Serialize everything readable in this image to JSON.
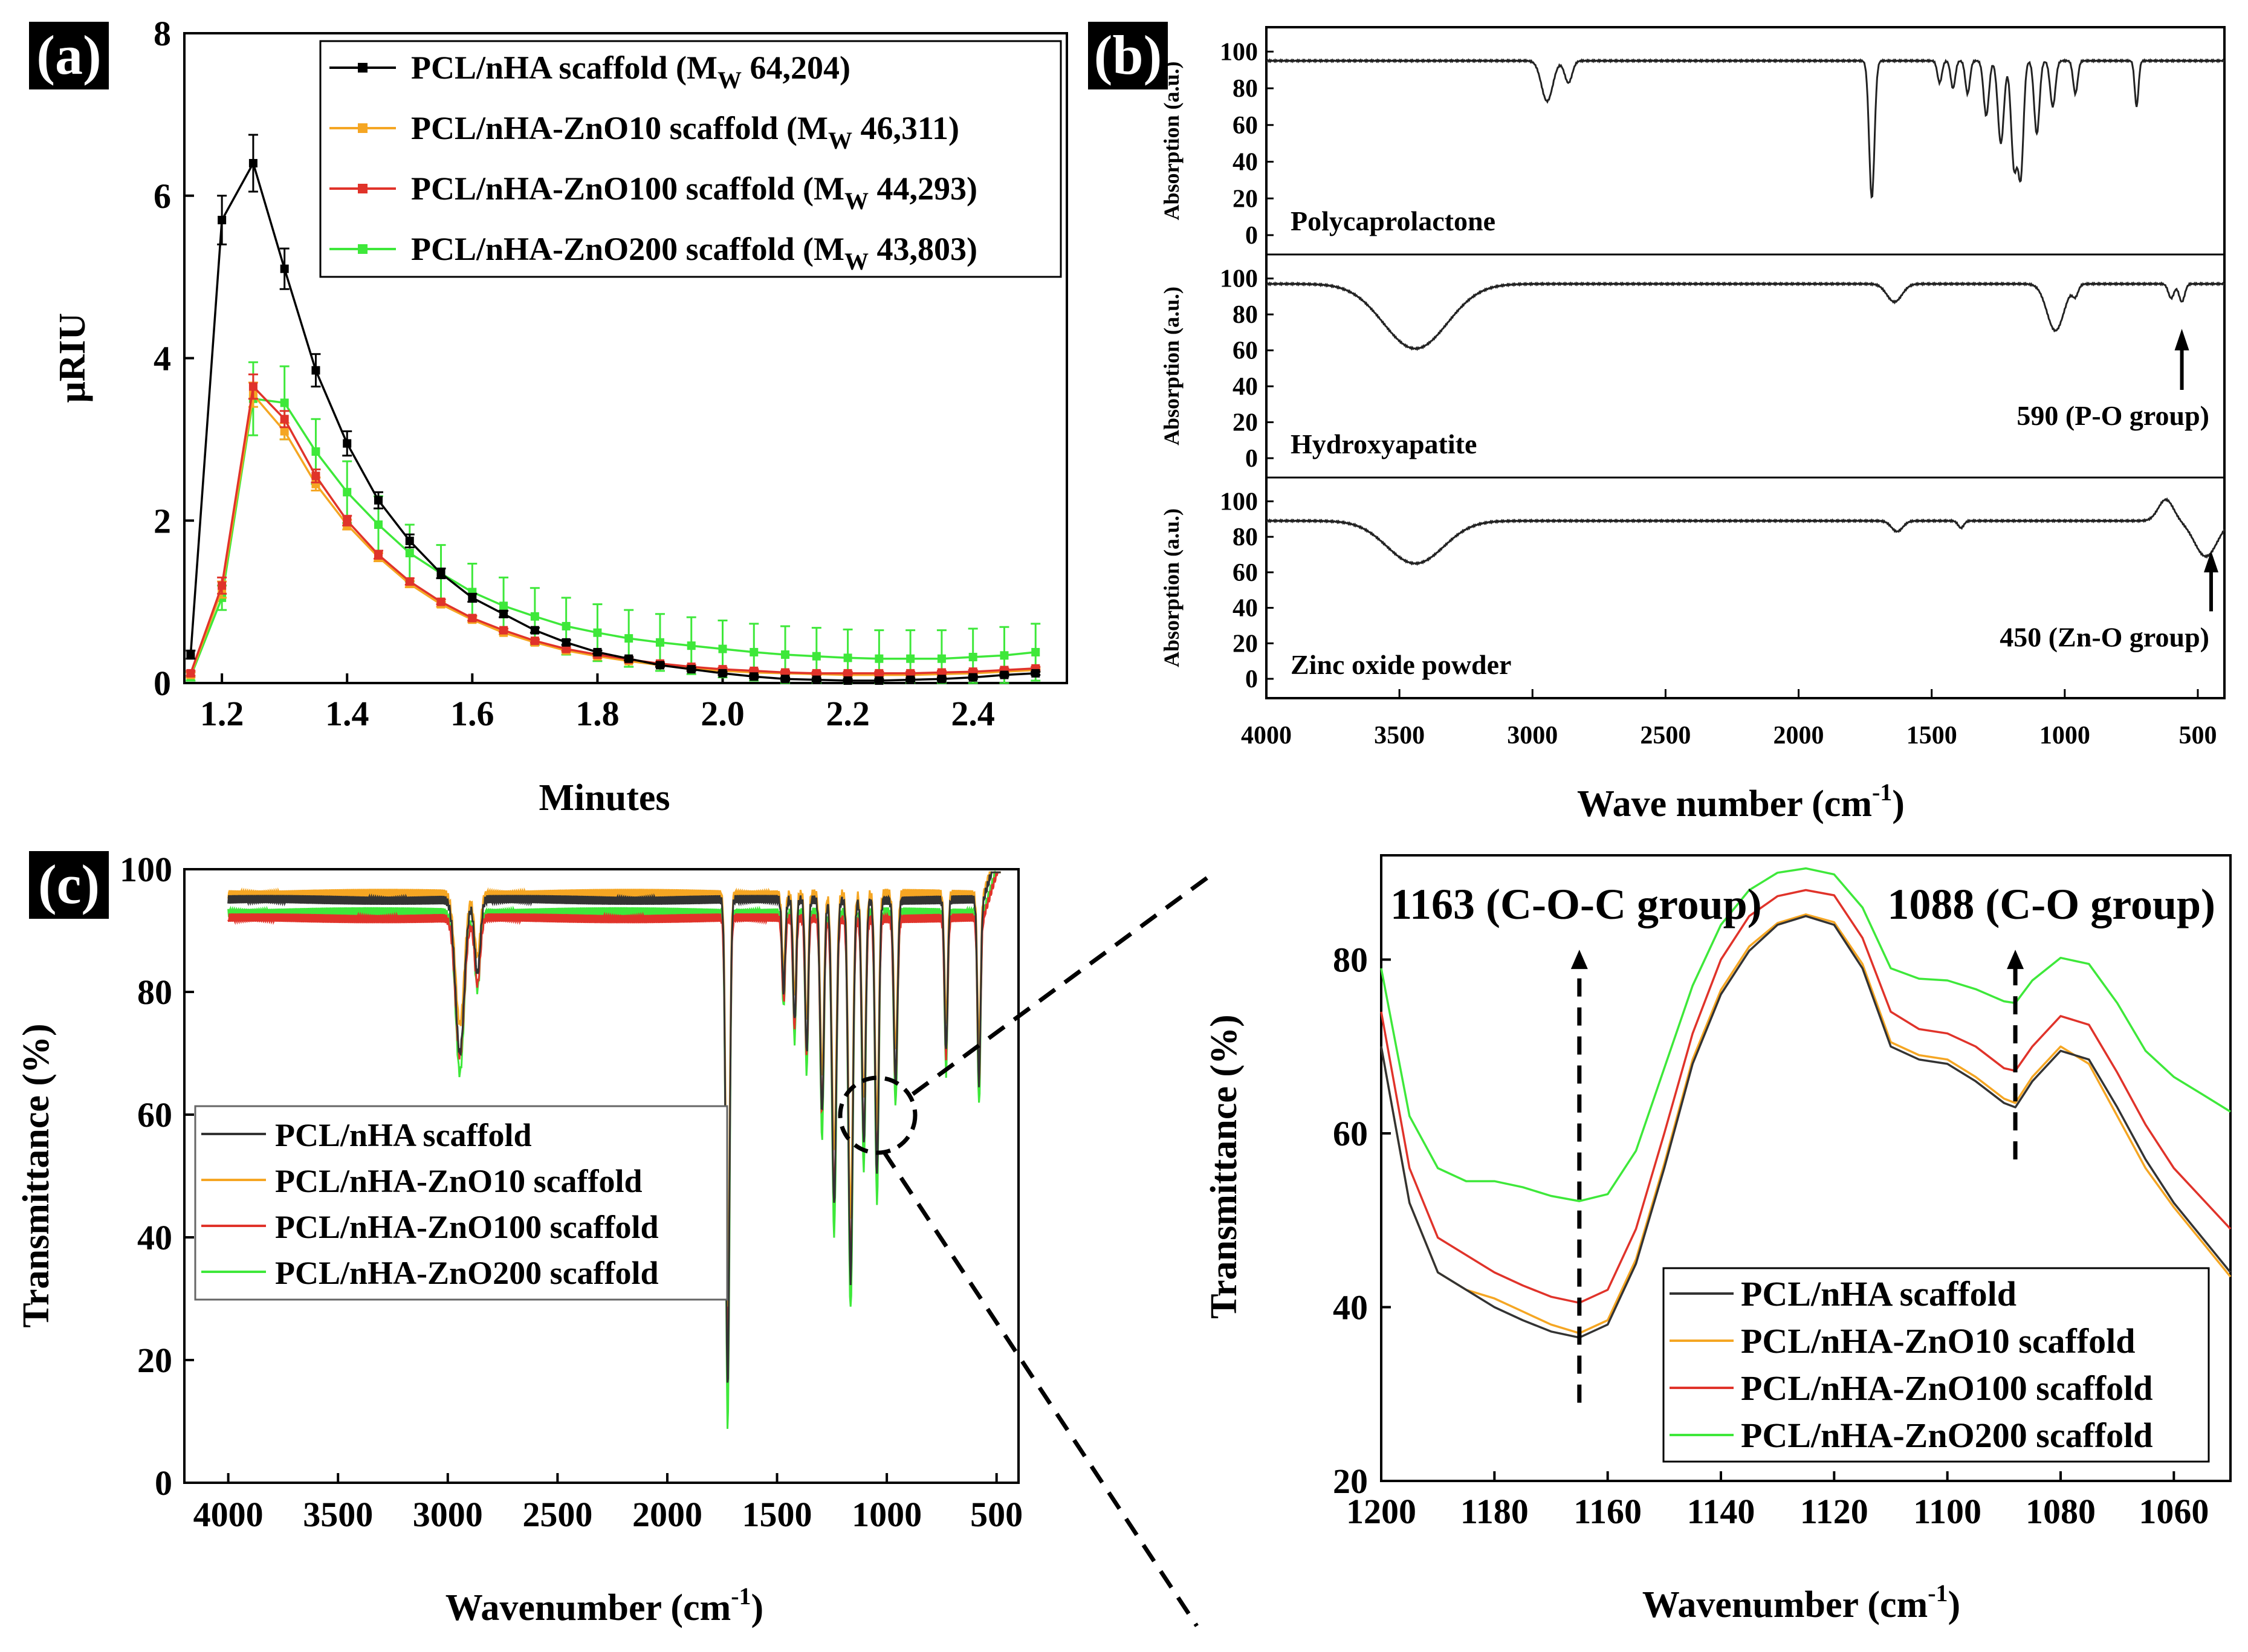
{
  "colors": {
    "black": "#000000",
    "orange": "#f5a623",
    "red": "#e0332a",
    "green": "#3ee83a",
    "pcl": "#333333",
    "panel_tag_bg": "#000000",
    "panel_tag_fg": "#ffffff"
  },
  "chart_data": [
    {
      "id": "a",
      "type": "line",
      "panel_label": "(a)",
      "xlabel": "Minutes",
      "ylabel": "μRIU",
      "xlim": [
        1.14,
        2.55
      ],
      "ylim": [
        0,
        8
      ],
      "xticks": [
        "1.2",
        "1.4",
        "1.6",
        "1.8",
        "2.0",
        "2.2",
        "2.4"
      ],
      "yticks": [
        "0",
        "2",
        "4",
        "6",
        "8"
      ],
      "legend": {
        "position": "top-right",
        "entries": [
          {
            "name": "PCL/nHA scaffold (M",
            "sub": "W",
            "tail": " 64,204)",
            "color_key": "black"
          },
          {
            "name": "PCL/nHA-ZnO10 scaffold (M",
            "sub": "W",
            "tail": " 46,311)",
            "color_key": "orange"
          },
          {
            "name": "PCL/nHA-ZnO100 scaffold (M",
            "sub": "W",
            "tail": " 44,293)",
            "color_key": "red"
          },
          {
            "name": "PCL/nHA-ZnO200 scaffold (M",
            "sub": "W",
            "tail": " 43,803)",
            "color_key": "green"
          }
        ]
      },
      "x": [
        1.15,
        1.2,
        1.25,
        1.3,
        1.35,
        1.4,
        1.45,
        1.5,
        1.55,
        1.6,
        1.65,
        1.7,
        1.75,
        1.8,
        1.85,
        1.9,
        1.95,
        2.0,
        2.05,
        2.1,
        2.15,
        2.2,
        2.25,
        2.3,
        2.35,
        2.4,
        2.45,
        2.5
      ],
      "series": [
        {
          "name": "PCL/nHA scaffold",
          "color_key": "black",
          "values": [
            0.35,
            5.7,
            6.4,
            5.1,
            3.85,
            2.95,
            2.25,
            1.75,
            1.35,
            1.05,
            0.85,
            0.65,
            0.5,
            0.38,
            0.3,
            0.22,
            0.17,
            0.12,
            0.08,
            0.05,
            0.04,
            0.03,
            0.03,
            0.04,
            0.05,
            0.07,
            0.1,
            0.12
          ],
          "errors": [
            0.05,
            0.3,
            0.35,
            0.25,
            0.2,
            0.15,
            0.1,
            0.08,
            0.06,
            0.05,
            0.04,
            0.03,
            0.03,
            0.02,
            0.02,
            0.02,
            0.02,
            0.02,
            0.02,
            0.02,
            0.02,
            0.02,
            0.02,
            0.02,
            0.02,
            0.02,
            0.02,
            0.02
          ]
        },
        {
          "name": "PCL/nHA-ZnO10 scaffold",
          "color_key": "orange",
          "values": [
            0.1,
            1.15,
            3.55,
            3.1,
            2.45,
            1.95,
            1.55,
            1.22,
            0.97,
            0.78,
            0.62,
            0.5,
            0.4,
            0.33,
            0.27,
            0.22,
            0.18,
            0.15,
            0.13,
            0.12,
            0.11,
            0.1,
            0.1,
            0.1,
            0.11,
            0.12,
            0.14,
            0.16
          ],
          "errors": [
            0.03,
            0.1,
            0.15,
            0.1,
            0.08,
            0.06,
            0.05,
            0.04,
            0.03,
            0.03,
            0.02,
            0.02,
            0.02,
            0.02,
            0.02,
            0.02,
            0.02,
            0.02,
            0.02,
            0.02,
            0.02,
            0.02,
            0.02,
            0.02,
            0.02,
            0.02,
            0.02,
            0.02
          ]
        },
        {
          "name": "PCL/nHA-ZnO100 scaffold",
          "color_key": "red",
          "values": [
            0.12,
            1.2,
            3.65,
            3.25,
            2.55,
            2.0,
            1.58,
            1.25,
            1.0,
            0.8,
            0.65,
            0.52,
            0.42,
            0.35,
            0.29,
            0.24,
            0.2,
            0.17,
            0.15,
            0.13,
            0.12,
            0.12,
            0.12,
            0.12,
            0.13,
            0.14,
            0.16,
            0.18
          ],
          "errors": [
            0.03,
            0.1,
            0.15,
            0.1,
            0.08,
            0.06,
            0.05,
            0.04,
            0.03,
            0.03,
            0.02,
            0.02,
            0.02,
            0.02,
            0.02,
            0.02,
            0.02,
            0.02,
            0.02,
            0.02,
            0.02,
            0.02,
            0.02,
            0.02,
            0.02,
            0.02,
            0.02,
            0.02
          ]
        },
        {
          "name": "PCL/nHA-ZnO200 scaffold",
          "color_key": "green",
          "values": [
            0.08,
            1.05,
            3.5,
            3.45,
            2.85,
            2.35,
            1.95,
            1.6,
            1.35,
            1.12,
            0.95,
            0.82,
            0.7,
            0.62,
            0.55,
            0.5,
            0.46,
            0.42,
            0.38,
            0.35,
            0.33,
            0.31,
            0.3,
            0.3,
            0.3,
            0.32,
            0.34,
            0.38
          ],
          "errors": [
            0.05,
            0.15,
            0.45,
            0.45,
            0.4,
            0.38,
            0.35,
            0.35,
            0.35,
            0.35,
            0.35,
            0.35,
            0.35,
            0.35,
            0.35,
            0.35,
            0.35,
            0.35,
            0.35,
            0.35,
            0.35,
            0.35,
            0.35,
            0.35,
            0.35,
            0.35,
            0.35,
            0.35
          ]
        }
      ]
    },
    {
      "id": "b",
      "type": "line",
      "panel_label": "(b)",
      "xlabel": "Wave number (cm",
      "xlabel_sup": "-1",
      "xlabel_tail": ")",
      "xlim": [
        4000,
        400
      ],
      "xticks": [
        "4000",
        "3500",
        "3000",
        "2500",
        "2000",
        "1500",
        "1000",
        "500"
      ],
      "xtick_values": [
        4000,
        3500,
        3000,
        2500,
        2000,
        1500,
        1000,
        500
      ],
      "subplots": [
        {
          "name": "Polycaprolactone",
          "ylabel": "Absorption (a.u.)",
          "ylim": [
            0,
            110
          ],
          "yticks": [
            "0",
            "20",
            "40",
            "60",
            "80",
            "100"
          ],
          "ytick_values": [
            0,
            20,
            40,
            60,
            80,
            100
          ],
          "baseline": 95,
          "dips": [
            [
              2945,
              22,
              30
            ],
            [
              2865,
              12,
              20
            ],
            [
              1725,
              75,
              14
            ],
            [
              1470,
              12,
              12
            ],
            [
              1420,
              15,
              12
            ],
            [
              1365,
              18,
              12
            ],
            [
              1295,
              30,
              14
            ],
            [
              1240,
              45,
              16
            ],
            [
              1190,
              58,
              16
            ],
            [
              1165,
              60,
              14
            ],
            [
              1105,
              40,
              14
            ],
            [
              1045,
              25,
              14
            ],
            [
              960,
              18,
              12
            ],
            [
              730,
              25,
              10
            ]
          ],
          "annotation": null
        },
        {
          "name": "Hydroxyapatite",
          "ylabel": "Absorption (a.u.)",
          "ylim": [
            0,
            110
          ],
          "yticks": [
            "0",
            "20",
            "40",
            "60",
            "80",
            "100"
          ],
          "ytick_values": [
            0,
            20,
            40,
            60,
            80,
            100
          ],
          "baseline": 97,
          "dips": [
            [
              3440,
              36,
              170
            ],
            [
              1640,
              10,
              40
            ],
            [
              1035,
              26,
              45
            ],
            [
              960,
              6,
              15
            ],
            [
              600,
              8,
              15
            ],
            [
              560,
              10,
              15
            ]
          ],
          "annotation": "590 (P-O group)",
          "arrow_x": 560
        },
        {
          "name": "Zinc oxide powder",
          "ylabel": "Absorption (a.u.)",
          "ylim": [
            0,
            110
          ],
          "yticks": [
            "0",
            "20",
            "40",
            "60",
            "80",
            "100"
          ],
          "ytick_values": [
            0,
            20,
            40,
            60,
            80,
            100
          ],
          "baseline": 89,
          "dips": [
            [
              3440,
              24,
              150
            ],
            [
              1630,
              6,
              30
            ],
            [
              1390,
              4,
              15
            ],
            [
              470,
              20,
              60
            ]
          ],
          "bump": [
            620,
            12,
            40
          ],
          "annotation": "450 (Zn-O group)",
          "arrow_x": 450
        }
      ]
    },
    {
      "id": "c",
      "type": "line",
      "panel_label": "(c)",
      "xlabel": "Wavenumber (cm",
      "xlabel_sup": "-1",
      "xlabel_tail": ")",
      "ylabel": "Transmittance (%)",
      "xlim": [
        4200,
        400
      ],
      "ylim": [
        0,
        100
      ],
      "xticks": [
        "4000",
        "3500",
        "3000",
        "2500",
        "2000",
        "1500",
        "1000",
        "500"
      ],
      "xtick_values": [
        4000,
        3500,
        3000,
        2500,
        2000,
        1500,
        1000,
        500
      ],
      "yticks": [
        "0",
        "20",
        "40",
        "60",
        "80",
        "100"
      ],
      "ytick_values": [
        0,
        20,
        40,
        60,
        80,
        100
      ],
      "legend": {
        "position": "center-left",
        "entries": [
          "PCL/nHA scaffold",
          "PCL/nHA-ZnO10 scaffold",
          "PCL/nHA-ZnO100 scaffold",
          "PCL/nHA-ZnO200 scaffold"
        ]
      },
      "series": [
        {
          "name": "PCL/nHA scaffold",
          "color_key": "pcl",
          "baseline": 95
        },
        {
          "name": "PCL/nHA-ZnO10 scaffold",
          "color_key": "orange",
          "baseline": 96
        },
        {
          "name": "PCL/nHA-ZnO100 scaffold",
          "color_key": "red",
          "baseline": 92
        },
        {
          "name": "PCL/nHA-ZnO200 scaffold",
          "color_key": "green",
          "baseline": 93
        }
      ],
      "dips": [
        [
          2945,
          25,
          28
        ],
        [
          2865,
          12,
          18
        ],
        [
          1725,
          80,
          12
        ],
        [
          1470,
          15,
          10
        ],
        [
          1420,
          20,
          10
        ],
        [
          1365,
          25,
          10
        ],
        [
          1295,
          35,
          12
        ],
        [
          1240,
          50,
          14
        ],
        [
          1165,
          62,
          14
        ],
        [
          1105,
          40,
          12
        ],
        [
          1045,
          45,
          12
        ],
        [
          960,
          30,
          12
        ],
        [
          730,
          25,
          10
        ],
        [
          580,
          30,
          10
        ]
      ]
    },
    {
      "id": "c-zoom",
      "type": "line",
      "xlabel": "Wavenumber (cm",
      "xlabel_sup": "-1",
      "xlabel_tail": ")",
      "ylabel": "Transmittance (%)",
      "xlim": [
        1200,
        1050
      ],
      "ylim": [
        20,
        92
      ],
      "xticks": [
        "1200",
        "1180",
        "1160",
        "1140",
        "1120",
        "1100",
        "1080",
        "1060"
      ],
      "xtick_values": [
        1200,
        1180,
        1160,
        1140,
        1120,
        1100,
        1080,
        1060
      ],
      "yticks": [
        "20",
        "40",
        "60",
        "80"
      ],
      "ytick_values": [
        20,
        40,
        60,
        80
      ],
      "annotations": [
        {
          "text": "1163 (C-O-C group)",
          "x": 1165
        },
        {
          "text": "1088 (C-O group)",
          "x": 1088
        }
      ],
      "legend": {
        "position": "bottom-right",
        "entries": [
          "PCL/nHA scaffold",
          "PCL/nHA-ZnO10 scaffold",
          "PCL/nHA-ZnO100 scaffold",
          "PCL/nHA-ZnO200 scaffold"
        ]
      },
      "x": [
        1200,
        1195,
        1190,
        1185,
        1180,
        1175,
        1170,
        1165,
        1160,
        1155,
        1150,
        1145,
        1140,
        1135,
        1130,
        1125,
        1120,
        1115,
        1110,
        1105,
        1100,
        1095,
        1090,
        1088,
        1085,
        1080,
        1075,
        1070,
        1065,
        1060,
        1055,
        1050
      ],
      "series": [
        {
          "name": "PCL/nHA scaffold",
          "color_key": "pcl",
          "values": [
            70,
            52,
            44,
            42,
            40,
            38.5,
            37.2,
            36.5,
            38,
            45,
            56,
            68,
            76,
            81,
            84,
            85,
            84,
            79,
            70,
            68.5,
            68,
            66,
            63.5,
            63,
            66,
            69.5,
            68.5,
            63,
            57,
            52,
            48,
            44
          ]
        },
        {
          "name": "PCL/nHA-ZnO10 scaffold",
          "color_key": "orange",
          "values": [
            70,
            52,
            44,
            42,
            41,
            39.5,
            38,
            37,
            38.5,
            45.5,
            56.5,
            68.5,
            76.5,
            81.5,
            84.2,
            85.2,
            84.3,
            79.5,
            70.5,
            69,
            68.5,
            66.5,
            64,
            63.5,
            66.5,
            70,
            68,
            62,
            56,
            51.5,
            47.5,
            43.5
          ]
        },
        {
          "name": "PCL/nHA-ZnO100 scaffold",
          "color_key": "red",
          "values": [
            74,
            56,
            48,
            46,
            44,
            42.5,
            41.2,
            40.5,
            42,
            49,
            60,
            71.5,
            80,
            85,
            87.3,
            88,
            87.4,
            82.5,
            74,
            72,
            71.5,
            70,
            67.5,
            67.2,
            70,
            73.5,
            72.5,
            67,
            61,
            56,
            52.5,
            49
          ]
        },
        {
          "name": "PCL/nHA-ZnO200 scaffold",
          "color_key": "green",
          "values": [
            79,
            62,
            56,
            54.5,
            54.5,
            53.8,
            52.8,
            52.2,
            53,
            58,
            67.5,
            77,
            84,
            88,
            90,
            90.5,
            89.8,
            86,
            79,
            77.8,
            77.6,
            76.6,
            75.2,
            75,
            77.6,
            80.2,
            79.5,
            75,
            69.5,
            66.5,
            64.5,
            62.5
          ]
        }
      ]
    }
  ]
}
